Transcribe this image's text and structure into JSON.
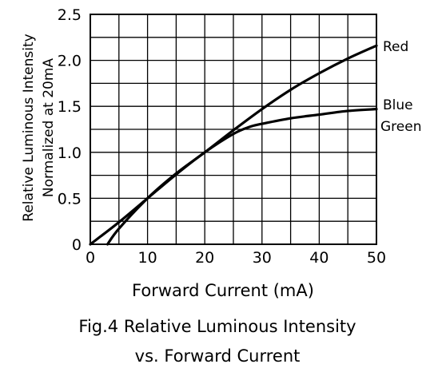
{
  "chart_data": {
    "type": "line",
    "xlabel": "Forward Current (mA)",
    "ylabel_lines": [
      "Relative Luminous Intensity",
      "Normalized at 20mA"
    ],
    "caption_lines": [
      "Fig.4 Relative Luminous Intensity",
      "vs. Forward Current"
    ],
    "xlim": [
      0,
      50
    ],
    "ylim": [
      0,
      2.5
    ],
    "x_ticks": [
      "0",
      "10",
      "20",
      "30",
      "40",
      "50"
    ],
    "y_ticks": [
      "0",
      "0.5",
      "1.0",
      "1.5",
      "2.0",
      "2.5"
    ],
    "grid": true,
    "series": [
      {
        "name": "Red",
        "x": [
          3,
          5,
          10,
          15,
          20,
          25,
          30,
          35,
          40,
          45,
          50
        ],
        "y": [
          0,
          0.17,
          0.5,
          0.77,
          1.0,
          1.24,
          1.47,
          1.68,
          1.86,
          2.02,
          2.16
        ]
      },
      {
        "name": "Blue Green",
        "x": [
          0,
          5,
          10,
          15,
          20,
          25,
          28,
          30,
          35,
          40,
          45,
          50
        ],
        "y": [
          0,
          0.24,
          0.5,
          0.76,
          1.0,
          1.2,
          1.28,
          1.31,
          1.37,
          1.41,
          1.45,
          1.47
        ]
      }
    ],
    "series_labels": [
      "Red",
      "Blue",
      "Green"
    ],
    "colors": {
      "line": "#000000",
      "grid": "#000000"
    }
  }
}
